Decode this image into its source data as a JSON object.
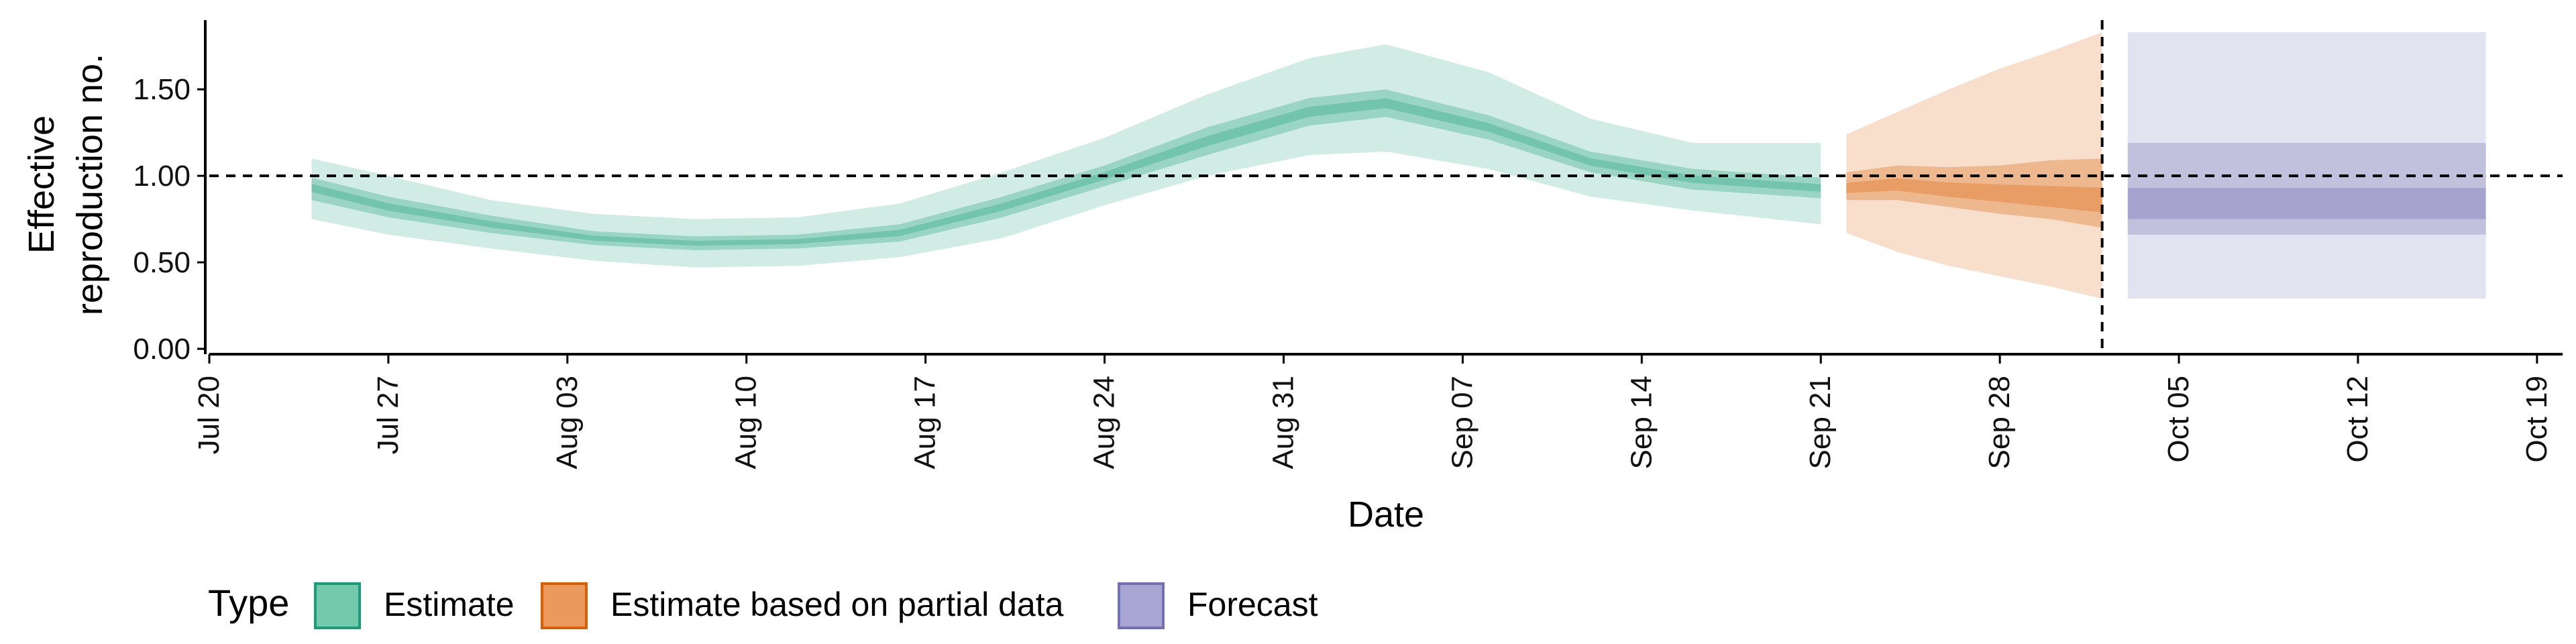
{
  "chart_data": {
    "type": "area",
    "xlabel": "Date",
    "ylabel_lines": [
      "Effective",
      "reproduction no."
    ],
    "x_ticks": [
      "Jul 20",
      "Jul 27",
      "Aug 03",
      "Aug 10",
      "Aug 17",
      "Aug 24",
      "Aug 31",
      "Sep 07",
      "Sep 14",
      "Sep 21",
      "Sep 28",
      "Oct 05",
      "Oct 12",
      "Oct 19"
    ],
    "x_start": "2020-07-20",
    "x_end": "2020-10-20",
    "y_ticks": [
      "0.00",
      "0.50",
      "1.00",
      "1.50"
    ],
    "ylim": [
      0,
      1.9
    ],
    "reference_line_y": 1.0,
    "vertical_line_date": "2020-10-02",
    "legend": {
      "title": "Type",
      "position": "bottom-left",
      "items": [
        {
          "label": "Estimate",
          "fill": "#74c8ab",
          "stroke": "#1b9e77"
        },
        {
          "label": "Estimate based on partial data",
          "fill": "#e99a5c",
          "stroke": "#d95f02"
        },
        {
          "label": "Forecast",
          "fill": "#a9a6d4",
          "stroke": "#7570b3"
        }
      ]
    },
    "colors": {
      "Estimate": "#1b9e77",
      "Estimate based on partial data": "#d95f02",
      "Forecast": "#7570b3"
    },
    "series": [
      {
        "name": "Estimate",
        "dates": [
          "2020-07-24",
          "2020-07-27",
          "2020-07-31",
          "2020-08-04",
          "2020-08-08",
          "2020-08-12",
          "2020-08-16",
          "2020-08-20",
          "2020-08-24",
          "2020-08-28",
          "2020-09-01",
          "2020-09-04",
          "2020-09-08",
          "2020-09-12",
          "2020-09-16",
          "2020-09-21"
        ],
        "median": [
          0.93,
          0.82,
          0.72,
          0.64,
          0.61,
          0.62,
          0.67,
          0.82,
          1.0,
          1.2,
          1.37,
          1.42,
          1.28,
          1.08,
          0.98,
          0.93
        ],
        "q25": [
          0.86,
          0.76,
          0.67,
          0.6,
          0.57,
          0.58,
          0.62,
          0.76,
          0.94,
          1.12,
          1.29,
          1.34,
          1.21,
          1.02,
          0.92,
          0.87
        ],
        "q75": [
          0.99,
          0.88,
          0.77,
          0.68,
          0.65,
          0.66,
          0.72,
          0.88,
          1.06,
          1.28,
          1.45,
          1.5,
          1.35,
          1.14,
          1.04,
          0.99
        ],
        "q5": [
          0.75,
          0.66,
          0.58,
          0.51,
          0.47,
          0.48,
          0.53,
          0.64,
          0.83,
          1.0,
          1.12,
          1.14,
          1.04,
          0.88,
          0.8,
          0.72
        ],
        "q95": [
          1.1,
          1.0,
          0.86,
          0.78,
          0.75,
          0.76,
          0.84,
          1.02,
          1.22,
          1.47,
          1.68,
          1.76,
          1.6,
          1.33,
          1.19,
          1.19
        ]
      },
      {
        "name": "Estimate based on partial data",
        "dates": [
          "2020-09-22",
          "2020-09-24",
          "2020-09-26",
          "2020-09-28",
          "2020-09-30",
          "2020-10-02"
        ],
        "median": [
          0.93,
          0.95,
          0.92,
          0.9,
          0.88,
          0.86
        ],
        "q25": [
          0.86,
          0.86,
          0.82,
          0.78,
          0.75,
          0.7
        ],
        "q75": [
          1.02,
          1.06,
          1.05,
          1.06,
          1.09,
          1.1
        ],
        "q5": [
          0.67,
          0.56,
          0.48,
          0.42,
          0.36,
          0.29
        ],
        "q95": [
          1.24,
          1.37,
          1.5,
          1.62,
          1.72,
          1.83
        ]
      },
      {
        "name": "Forecast",
        "dates": [
          "2020-10-03",
          "2020-10-17"
        ],
        "median": [
          0.86,
          0.86
        ],
        "q25": [
          0.75,
          0.75
        ],
        "q75": [
          0.93,
          0.93
        ],
        "q5": [
          0.29,
          0.29
        ],
        "q95": [
          1.83,
          1.83
        ],
        "q_mid_low": [
          0.66,
          0.66
        ],
        "q_mid_high": [
          1.19,
          1.19
        ]
      }
    ]
  }
}
